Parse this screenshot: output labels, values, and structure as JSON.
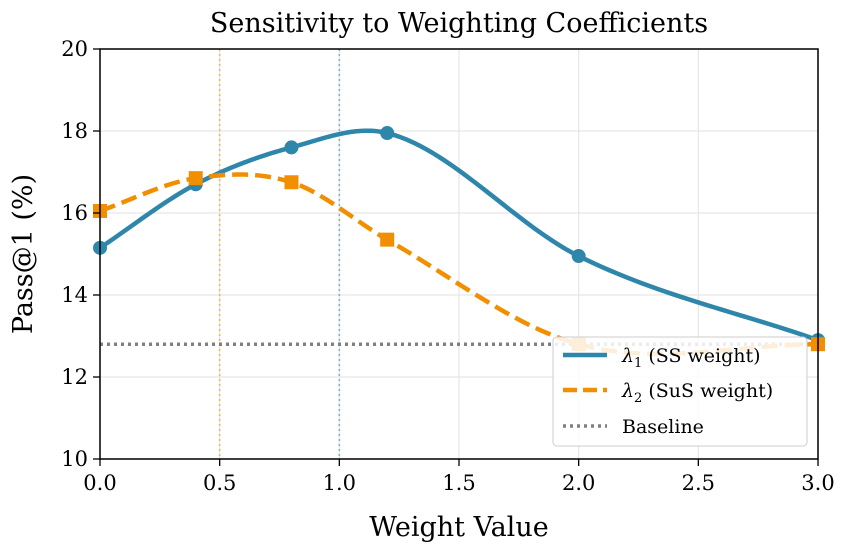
{
  "colors": {
    "series_1": "#2E86AB",
    "series_2": "#F18F01",
    "baseline": "#808080",
    "grid": "#e6e6e6"
  },
  "chart_data": {
    "type": "line",
    "title": "Sensitivity to Weighting Coefficients",
    "xlabel": "Weight Value",
    "ylabel": "Pass@1 (%)",
    "xlim": [
      0,
      3
    ],
    "ylim": [
      10,
      20
    ],
    "xticks": [
      "0.0",
      "0.5",
      "1.0",
      "1.5",
      "2.0",
      "2.5",
      "3.0"
    ],
    "xtick_values": [
      0,
      0.5,
      1.0,
      1.5,
      2.0,
      2.5,
      3.0
    ],
    "yticks": [
      "10",
      "12",
      "14",
      "16",
      "18",
      "20"
    ],
    "ytick_values": [
      10,
      12,
      14,
      16,
      18,
      20
    ],
    "grid": true,
    "series": [
      {
        "name": "λ1 (SS weight)",
        "symbol": "λ",
        "subscript": "1",
        "suffix": " (SS weight)",
        "color": "#2E86AB",
        "style": "solid",
        "marker": "circle",
        "x": [
          0.0,
          0.4,
          0.8,
          1.2,
          2.0,
          3.0
        ],
        "y": [
          15.15,
          16.7,
          17.6,
          17.95,
          14.95,
          12.9
        ]
      },
      {
        "name": "λ2 (SuS weight)",
        "symbol": "λ",
        "subscript": "2",
        "suffix": " (SuS weight)",
        "color": "#F18F01",
        "style": "dashed",
        "marker": "square",
        "x": [
          0.0,
          0.4,
          0.8,
          1.2,
          2.0,
          3.0
        ],
        "y": [
          16.05,
          16.85,
          16.75,
          15.35,
          12.8,
          12.8
        ]
      }
    ],
    "baseline": {
      "name": "Baseline",
      "value": 12.8,
      "color": "#808080",
      "style": "dotted"
    },
    "reference_lines": [
      {
        "x": 0.5,
        "color": "#F18F01",
        "style": "dotted"
      },
      {
        "x": 1.0,
        "color": "#2E86AB",
        "style": "dotted"
      }
    ],
    "legend": {
      "position": "lower-right",
      "entries": [
        "λ1 (SS weight)",
        "λ2 (SuS weight)",
        "Baseline"
      ]
    }
  }
}
